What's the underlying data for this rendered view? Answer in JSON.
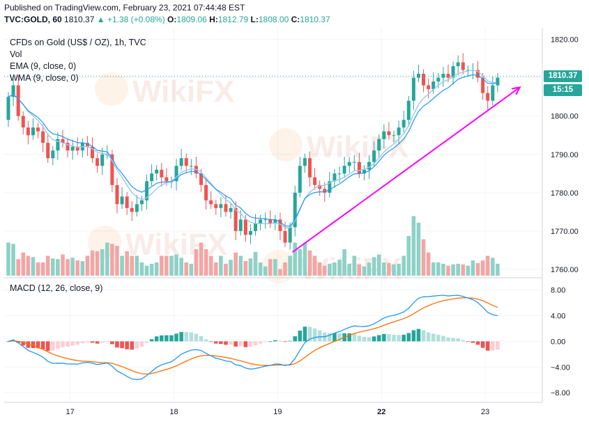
{
  "header": {
    "published": "Published on TradingView.com, February 23, 2021 07:44:48 EST",
    "symbol": "TVC:GOLD, 60",
    "last": "1810.37",
    "change": "▲ +1.38 (+0.08%)",
    "o_label": "O:",
    "o": "1809.06",
    "h_label": "H:",
    "h": "1812.79",
    "l_label": "L:",
    "l": "1808.00",
    "c_label": "C:",
    "c": "1810.37"
  },
  "legend": {
    "title": "CFDs on Gold (US$ / OZ), 1h, TVC",
    "vol": "Vol",
    "ema": "EMA (9, close, 0)",
    "wma": "WMA (9, close, 0)",
    "macd": "MACD (12, 26, close, 9)"
  },
  "price_tag": {
    "price": "1810.37",
    "countdown": "15:15"
  },
  "watermark": "WikiFX",
  "colors": {
    "up": "#26a69a",
    "down": "#ef5350",
    "vol_up": "#8ed1c6",
    "vol_down": "#f3a5a4",
    "ema": "#2196f3",
    "wma": "#9ac8f0",
    "macd_line": "#2196f3",
    "signal_line": "#ff6d00",
    "hist_up_strong": "#26a69a",
    "hist_up_weak": "#b2dfdb",
    "hist_down_strong": "#ef5350",
    "hist_down_weak": "#ffcdd2",
    "trend_arrow": "#ff00ff",
    "price_tag": "#26a69a"
  },
  "chart_data": [
    {
      "type": "candlestick",
      "title": "CFDs on Gold (US$ / OZ), 1h, TVC",
      "ylim": [
        1758,
        1823
      ],
      "yticks": [
        "1760.00",
        "1770.00",
        "1780.00",
        "1790.00",
        "1800.00",
        "1810.00",
        "1820.00"
      ],
      "yticks_values": [
        1760,
        1770,
        1780,
        1790,
        1800,
        1810,
        1820
      ],
      "xticks": [
        {
          "label": "17",
          "index": 12.5
        },
        {
          "label": "18",
          "index": 33.5
        },
        {
          "label": "19",
          "index": 54.5
        },
        {
          "label": "22",
          "index": 75.5
        },
        {
          "label": "23",
          "index": 96.5
        }
      ],
      "closes": [
        1805,
        1808,
        1800,
        1797,
        1795,
        1797,
        1796,
        1793,
        1789,
        1791,
        1794,
        1793,
        1791,
        1792,
        1791,
        1793,
        1792,
        1789,
        1787,
        1790,
        1790,
        1782,
        1777,
        1779,
        1776,
        1775,
        1777,
        1778,
        1783,
        1785,
        1786,
        1784,
        1783,
        1783,
        1787,
        1789,
        1787,
        1787,
        1785,
        1782,
        1778,
        1777,
        1776,
        1777,
        1775,
        1776,
        1770,
        1773,
        1769,
        1770,
        1772,
        1773,
        1773,
        1772,
        1773,
        1770,
        1767,
        1771,
        1780,
        1787,
        1789,
        1784,
        1782,
        1781,
        1780,
        1783,
        1785,
        1785,
        1787,
        1788,
        1788,
        1785,
        1786,
        1788,
        1791,
        1794,
        1796,
        1795,
        1795,
        1797,
        1799,
        1804,
        1810,
        1811,
        1808,
        1807,
        1809,
        1810,
        1811,
        1810,
        1813,
        1814,
        1812,
        1812,
        1812,
        1810,
        1806,
        1804,
        1808,
        1810
      ],
      "open": 1799,
      "vol_ylim": [
        0,
        1
      ],
      "volume": [
        0.5,
        0.48,
        0.25,
        0.35,
        0.3,
        0.28,
        0.2,
        0.2,
        0.3,
        0.26,
        0.25,
        0.32,
        0.25,
        0.27,
        0.23,
        0.22,
        0.3,
        0.38,
        0.37,
        0.4,
        0.5,
        0.48,
        0.45,
        0.3,
        0.37,
        0.3,
        0.3,
        0.2,
        0.15,
        0.18,
        0.2,
        0.3,
        0.3,
        0.3,
        0.32,
        0.27,
        0.2,
        0.18,
        0.4,
        0.5,
        0.4,
        0.3,
        0.2,
        0.3,
        0.18,
        0.24,
        0.35,
        0.3,
        0.22,
        0.26,
        0.36,
        0.2,
        0.14,
        0.25,
        0.25,
        0.1,
        0.2,
        0.3,
        0.5,
        0.4,
        0.5,
        0.38,
        0.3,
        0.2,
        0.15,
        0.18,
        0.2,
        0.24,
        0.4,
        0.18,
        0.3,
        0.17,
        0.14,
        0.2,
        0.28,
        0.32,
        0.2,
        0.19,
        0.17,
        0.18,
        0.3,
        0.6,
        0.9,
        0.8,
        0.55,
        0.35,
        0.2,
        0.2,
        0.18,
        0.15,
        0.17,
        0.18,
        0.17,
        0.15,
        0.23,
        0.19,
        0.23,
        0.3,
        0.27,
        0.18
      ]
    },
    {
      "type": "macd",
      "title": "MACD (12, 26, close, 9)",
      "ylim": [
        -9.5,
        9.8
      ],
      "yticks": [
        "−8.00",
        "−4.00",
        "0.00",
        "4.00",
        "8.00"
      ],
      "yticks_values": [
        -8,
        -4,
        0,
        4,
        8
      ]
    }
  ]
}
